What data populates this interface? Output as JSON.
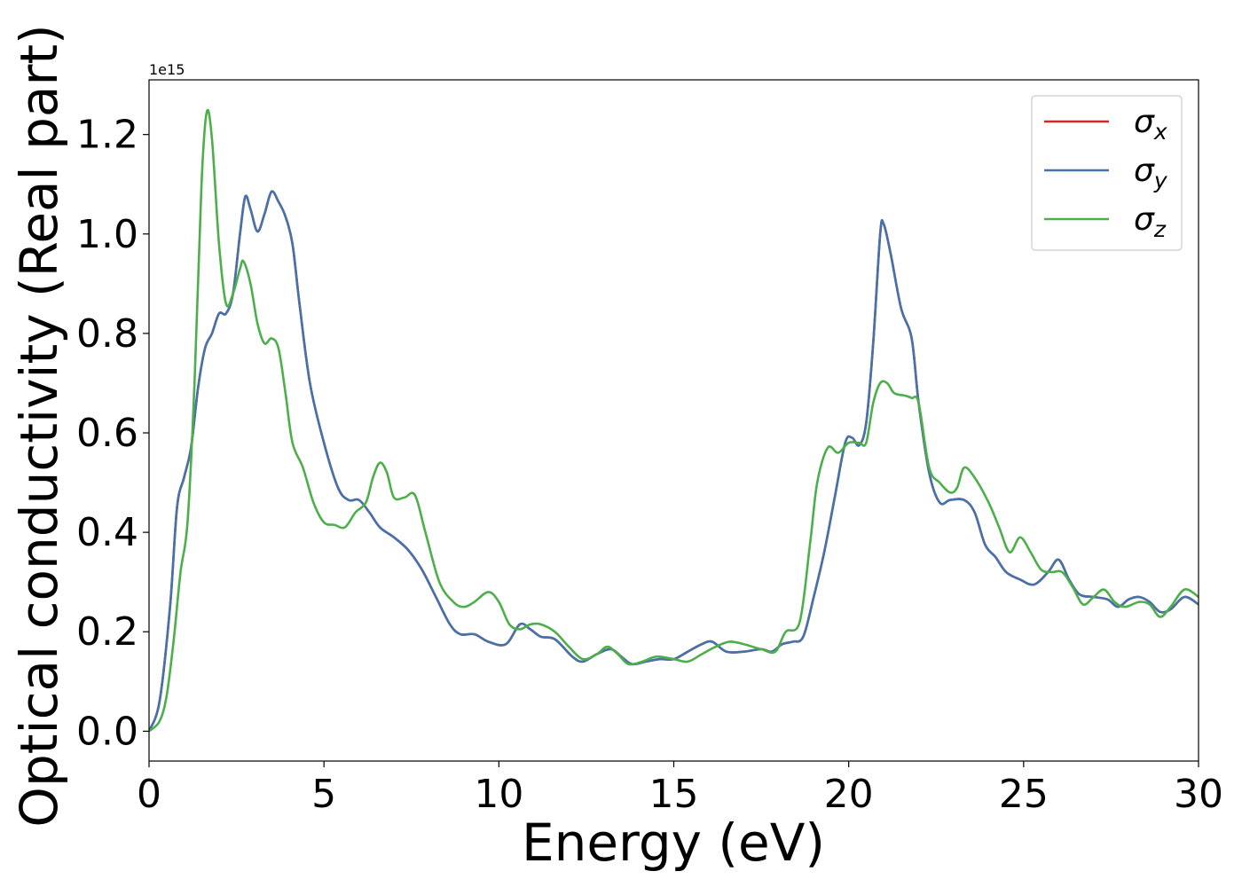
{
  "chart_data": {
    "type": "line",
    "title": "",
    "xlabel": "Energy (eV)",
    "ylabel": "Optical conductivity (Real part)",
    "y_offset_label": "1e15",
    "xlim": [
      0,
      30
    ],
    "ylim": [
      -0.06,
      1.31
    ],
    "y_scale_note": "values in units of 1e15",
    "x_ticks": [
      0,
      5,
      10,
      15,
      20,
      25,
      30
    ],
    "x_tick_labels": [
      "0",
      "5",
      "10",
      "15",
      "20",
      "25",
      "30"
    ],
    "y_ticks": [
      0.0,
      0.2,
      0.4,
      0.6,
      0.8,
      1.0,
      1.2
    ],
    "y_tick_labels": [
      "0.0",
      "0.2",
      "0.4",
      "0.6",
      "0.8",
      "1.0",
      "1.2"
    ],
    "grid": false,
    "legend_position": "top-right",
    "series": [
      {
        "name": "σ_x",
        "legend_base": "σ",
        "legend_sub": "x",
        "color": "#d62728",
        "points": [
          [
            0,
            0
          ],
          [
            0.3,
            0.06
          ],
          [
            0.6,
            0.25
          ],
          [
            0.8,
            0.45
          ],
          [
            1.0,
            0.51
          ],
          [
            1.2,
            0.57
          ],
          [
            1.4,
            0.69
          ],
          [
            1.6,
            0.77
          ],
          [
            1.8,
            0.8
          ],
          [
            2.0,
            0.84
          ],
          [
            2.2,
            0.84
          ],
          [
            2.4,
            0.88
          ],
          [
            2.6,
            1.0
          ],
          [
            2.75,
            1.075
          ],
          [
            2.9,
            1.05
          ],
          [
            3.1,
            1.005
          ],
          [
            3.3,
            1.04
          ],
          [
            3.5,
            1.085
          ],
          [
            3.7,
            1.065
          ],
          [
            3.9,
            1.035
          ],
          [
            4.1,
            0.98
          ],
          [
            4.3,
            0.86
          ],
          [
            4.6,
            0.7
          ],
          [
            5.0,
            0.58
          ],
          [
            5.4,
            0.49
          ],
          [
            5.7,
            0.465
          ],
          [
            6.0,
            0.465
          ],
          [
            6.3,
            0.44
          ],
          [
            6.6,
            0.41
          ],
          [
            7.0,
            0.39
          ],
          [
            7.4,
            0.365
          ],
          [
            7.8,
            0.325
          ],
          [
            8.2,
            0.27
          ],
          [
            8.6,
            0.215
          ],
          [
            8.9,
            0.195
          ],
          [
            9.3,
            0.195
          ],
          [
            9.7,
            0.18
          ],
          [
            10.2,
            0.175
          ],
          [
            10.6,
            0.215
          ],
          [
            10.9,
            0.205
          ],
          [
            11.2,
            0.19
          ],
          [
            11.6,
            0.185
          ],
          [
            12.1,
            0.15
          ],
          [
            12.4,
            0.14
          ],
          [
            12.8,
            0.155
          ],
          [
            13.2,
            0.165
          ],
          [
            13.5,
            0.15
          ],
          [
            13.8,
            0.135
          ],
          [
            14.2,
            0.14
          ],
          [
            14.6,
            0.145
          ],
          [
            15.0,
            0.145
          ],
          [
            15.4,
            0.16
          ],
          [
            15.8,
            0.175
          ],
          [
            16.1,
            0.18
          ],
          [
            16.5,
            0.16
          ],
          [
            17.0,
            0.16
          ],
          [
            17.5,
            0.165
          ],
          [
            17.8,
            0.16
          ],
          [
            18.1,
            0.175
          ],
          [
            18.4,
            0.18
          ],
          [
            18.7,
            0.19
          ],
          [
            19.0,
            0.27
          ],
          [
            19.3,
            0.36
          ],
          [
            19.6,
            0.47
          ],
          [
            19.9,
            0.58
          ],
          [
            20.1,
            0.59
          ],
          [
            20.3,
            0.575
          ],
          [
            20.5,
            0.62
          ],
          [
            20.7,
            0.78
          ],
          [
            20.9,
            1.0
          ],
          [
            21.0,
            1.02
          ],
          [
            21.2,
            0.96
          ],
          [
            21.5,
            0.85
          ],
          [
            21.8,
            0.79
          ],
          [
            22.0,
            0.66
          ],
          [
            22.3,
            0.52
          ],
          [
            22.6,
            0.46
          ],
          [
            22.9,
            0.465
          ],
          [
            23.3,
            0.465
          ],
          [
            23.6,
            0.44
          ],
          [
            23.9,
            0.375
          ],
          [
            24.2,
            0.35
          ],
          [
            24.5,
            0.32
          ],
          [
            24.9,
            0.305
          ],
          [
            25.3,
            0.295
          ],
          [
            25.7,
            0.32
          ],
          [
            26.0,
            0.345
          ],
          [
            26.3,
            0.305
          ],
          [
            26.6,
            0.275
          ],
          [
            27.0,
            0.27
          ],
          [
            27.4,
            0.265
          ],
          [
            27.7,
            0.25
          ],
          [
            28.0,
            0.265
          ],
          [
            28.3,
            0.27
          ],
          [
            28.6,
            0.26
          ],
          [
            28.9,
            0.24
          ],
          [
            29.2,
            0.245
          ],
          [
            29.6,
            0.27
          ],
          [
            30.0,
            0.255
          ]
        ]
      },
      {
        "name": "σ_y",
        "legend_base": "σ",
        "legend_sub": "y",
        "color": "#4473ab",
        "points": [
          [
            0,
            0
          ],
          [
            0.3,
            0.06
          ],
          [
            0.6,
            0.25
          ],
          [
            0.8,
            0.45
          ],
          [
            1.0,
            0.51
          ],
          [
            1.2,
            0.57
          ],
          [
            1.4,
            0.69
          ],
          [
            1.6,
            0.77
          ],
          [
            1.8,
            0.8
          ],
          [
            2.0,
            0.84
          ],
          [
            2.2,
            0.84
          ],
          [
            2.4,
            0.88
          ],
          [
            2.6,
            1.0
          ],
          [
            2.75,
            1.075
          ],
          [
            2.9,
            1.05
          ],
          [
            3.1,
            1.005
          ],
          [
            3.3,
            1.04
          ],
          [
            3.5,
            1.085
          ],
          [
            3.7,
            1.065
          ],
          [
            3.9,
            1.035
          ],
          [
            4.1,
            0.98
          ],
          [
            4.3,
            0.86
          ],
          [
            4.6,
            0.7
          ],
          [
            5.0,
            0.58
          ],
          [
            5.4,
            0.49
          ],
          [
            5.7,
            0.465
          ],
          [
            6.0,
            0.465
          ],
          [
            6.3,
            0.44
          ],
          [
            6.6,
            0.41
          ],
          [
            7.0,
            0.39
          ],
          [
            7.4,
            0.365
          ],
          [
            7.8,
            0.325
          ],
          [
            8.2,
            0.27
          ],
          [
            8.6,
            0.215
          ],
          [
            8.9,
            0.195
          ],
          [
            9.3,
            0.195
          ],
          [
            9.7,
            0.18
          ],
          [
            10.2,
            0.175
          ],
          [
            10.6,
            0.215
          ],
          [
            10.9,
            0.205
          ],
          [
            11.2,
            0.19
          ],
          [
            11.6,
            0.185
          ],
          [
            12.1,
            0.15
          ],
          [
            12.4,
            0.14
          ],
          [
            12.8,
            0.155
          ],
          [
            13.2,
            0.165
          ],
          [
            13.5,
            0.15
          ],
          [
            13.8,
            0.135
          ],
          [
            14.2,
            0.14
          ],
          [
            14.6,
            0.145
          ],
          [
            15.0,
            0.145
          ],
          [
            15.4,
            0.16
          ],
          [
            15.8,
            0.175
          ],
          [
            16.1,
            0.18
          ],
          [
            16.5,
            0.16
          ],
          [
            17.0,
            0.16
          ],
          [
            17.5,
            0.165
          ],
          [
            17.8,
            0.16
          ],
          [
            18.1,
            0.175
          ],
          [
            18.4,
            0.18
          ],
          [
            18.7,
            0.19
          ],
          [
            19.0,
            0.27
          ],
          [
            19.3,
            0.36
          ],
          [
            19.6,
            0.47
          ],
          [
            19.9,
            0.58
          ],
          [
            20.1,
            0.59
          ],
          [
            20.3,
            0.575
          ],
          [
            20.5,
            0.62
          ],
          [
            20.7,
            0.78
          ],
          [
            20.9,
            1.0
          ],
          [
            21.0,
            1.02
          ],
          [
            21.2,
            0.96
          ],
          [
            21.5,
            0.85
          ],
          [
            21.8,
            0.79
          ],
          [
            22.0,
            0.66
          ],
          [
            22.3,
            0.52
          ],
          [
            22.6,
            0.46
          ],
          [
            22.9,
            0.465
          ],
          [
            23.3,
            0.465
          ],
          [
            23.6,
            0.44
          ],
          [
            23.9,
            0.375
          ],
          [
            24.2,
            0.35
          ],
          [
            24.5,
            0.32
          ],
          [
            24.9,
            0.305
          ],
          [
            25.3,
            0.295
          ],
          [
            25.7,
            0.32
          ],
          [
            26.0,
            0.345
          ],
          [
            26.3,
            0.305
          ],
          [
            26.6,
            0.275
          ],
          [
            27.0,
            0.27
          ],
          [
            27.4,
            0.265
          ],
          [
            27.7,
            0.25
          ],
          [
            28.0,
            0.265
          ],
          [
            28.3,
            0.27
          ],
          [
            28.6,
            0.26
          ],
          [
            28.9,
            0.24
          ],
          [
            29.2,
            0.245
          ],
          [
            29.6,
            0.27
          ],
          [
            30.0,
            0.255
          ]
        ]
      },
      {
        "name": "σ_z",
        "legend_base": "σ",
        "legend_sub": "z",
        "color": "#4daf4a",
        "points": [
          [
            0,
            0
          ],
          [
            0.3,
            0.02
          ],
          [
            0.5,
            0.07
          ],
          [
            0.7,
            0.18
          ],
          [
            0.9,
            0.32
          ],
          [
            1.1,
            0.42
          ],
          [
            1.3,
            0.7
          ],
          [
            1.5,
            1.1
          ],
          [
            1.65,
            1.245
          ],
          [
            1.8,
            1.19
          ],
          [
            2.0,
            0.98
          ],
          [
            2.2,
            0.86
          ],
          [
            2.4,
            0.88
          ],
          [
            2.6,
            0.93
          ],
          [
            2.7,
            0.945
          ],
          [
            2.9,
            0.9
          ],
          [
            3.1,
            0.82
          ],
          [
            3.3,
            0.78
          ],
          [
            3.5,
            0.79
          ],
          [
            3.7,
            0.77
          ],
          [
            3.9,
            0.68
          ],
          [
            4.1,
            0.58
          ],
          [
            4.4,
            0.53
          ],
          [
            4.7,
            0.46
          ],
          [
            5.0,
            0.42
          ],
          [
            5.3,
            0.415
          ],
          [
            5.6,
            0.41
          ],
          [
            5.9,
            0.44
          ],
          [
            6.2,
            0.46
          ],
          [
            6.4,
            0.51
          ],
          [
            6.6,
            0.54
          ],
          [
            6.8,
            0.52
          ],
          [
            7.0,
            0.47
          ],
          [
            7.3,
            0.47
          ],
          [
            7.6,
            0.475
          ],
          [
            7.9,
            0.4
          ],
          [
            8.3,
            0.3
          ],
          [
            8.7,
            0.26
          ],
          [
            9.0,
            0.25
          ],
          [
            9.3,
            0.26
          ],
          [
            9.7,
            0.28
          ],
          [
            10.0,
            0.26
          ],
          [
            10.3,
            0.215
          ],
          [
            10.6,
            0.205
          ],
          [
            10.9,
            0.215
          ],
          [
            11.2,
            0.215
          ],
          [
            11.6,
            0.2
          ],
          [
            12.0,
            0.17
          ],
          [
            12.4,
            0.145
          ],
          [
            12.8,
            0.155
          ],
          [
            13.1,
            0.17
          ],
          [
            13.4,
            0.155
          ],
          [
            13.7,
            0.135
          ],
          [
            14.1,
            0.14
          ],
          [
            14.5,
            0.15
          ],
          [
            15.0,
            0.145
          ],
          [
            15.4,
            0.14
          ],
          [
            15.8,
            0.155
          ],
          [
            16.2,
            0.17
          ],
          [
            16.6,
            0.18
          ],
          [
            17.0,
            0.175
          ],
          [
            17.5,
            0.165
          ],
          [
            17.9,
            0.16
          ],
          [
            18.2,
            0.2
          ],
          [
            18.6,
            0.22
          ],
          [
            18.9,
            0.38
          ],
          [
            19.1,
            0.5
          ],
          [
            19.4,
            0.57
          ],
          [
            19.7,
            0.56
          ],
          [
            20.0,
            0.58
          ],
          [
            20.3,
            0.58
          ],
          [
            20.5,
            0.58
          ],
          [
            20.7,
            0.66
          ],
          [
            20.9,
            0.7
          ],
          [
            21.1,
            0.7
          ],
          [
            21.3,
            0.68
          ],
          [
            21.6,
            0.675
          ],
          [
            21.8,
            0.67
          ],
          [
            22.0,
            0.66
          ],
          [
            22.3,
            0.53
          ],
          [
            22.6,
            0.5
          ],
          [
            22.9,
            0.48
          ],
          [
            23.1,
            0.49
          ],
          [
            23.3,
            0.53
          ],
          [
            23.6,
            0.51
          ],
          [
            24.0,
            0.46
          ],
          [
            24.3,
            0.41
          ],
          [
            24.6,
            0.36
          ],
          [
            24.9,
            0.39
          ],
          [
            25.2,
            0.36
          ],
          [
            25.5,
            0.325
          ],
          [
            25.8,
            0.32
          ],
          [
            26.1,
            0.32
          ],
          [
            26.4,
            0.29
          ],
          [
            26.7,
            0.255
          ],
          [
            27.0,
            0.27
          ],
          [
            27.3,
            0.285
          ],
          [
            27.6,
            0.26
          ],
          [
            27.9,
            0.25
          ],
          [
            28.3,
            0.26
          ],
          [
            28.6,
            0.255
          ],
          [
            28.9,
            0.23
          ],
          [
            29.2,
            0.25
          ],
          [
            29.6,
            0.285
          ],
          [
            30.0,
            0.27
          ]
        ]
      }
    ]
  }
}
